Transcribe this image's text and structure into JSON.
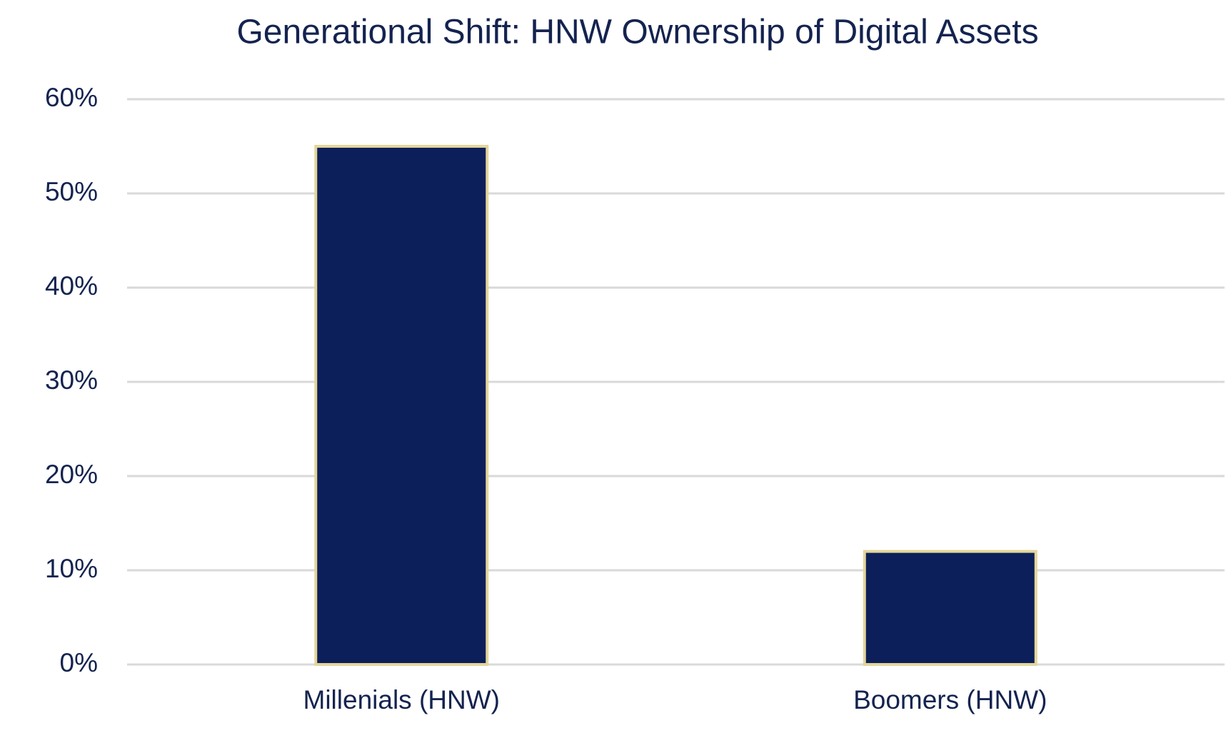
{
  "chart_data": {
    "type": "bar",
    "title": "Generational Shift: HNW Ownership of Digital Assets",
    "categories": [
      "Millenials (HNW)",
      "Boomers (HNW)"
    ],
    "values": [
      55,
      12
    ],
    "color": "#0c1f5a",
    "edge_color": "#e3d69a",
    "ylim": [
      0,
      60
    ],
    "yticks": [
      {
        "value": 0,
        "label": "0%"
      },
      {
        "value": 10,
        "label": "10%"
      },
      {
        "value": 20,
        "label": "20%"
      },
      {
        "value": 30,
        "label": "30%"
      },
      {
        "value": 40,
        "label": "40%"
      },
      {
        "value": 50,
        "label": "50%"
      },
      {
        "value": 60,
        "label": "60%"
      }
    ],
    "grid": true
  }
}
